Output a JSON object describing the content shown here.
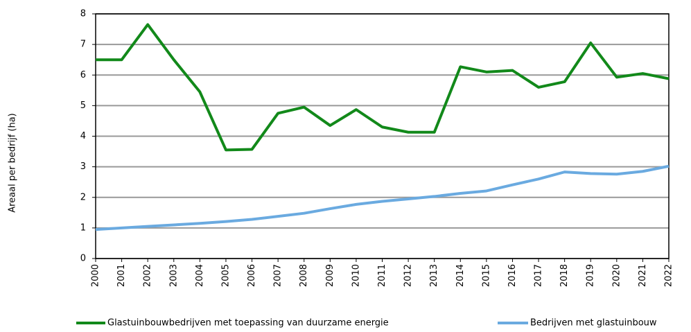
{
  "chart_data": {
    "type": "line",
    "y_label": "Areaal per bedrijf (ha)",
    "categories": [
      "2000",
      "2001",
      "2002",
      "2003",
      "2004",
      "2005",
      "2006",
      "2007",
      "2008",
      "2009",
      "2010",
      "2011",
      "2012",
      "2013",
      "2014",
      "2015",
      "2016",
      "2017",
      "2018",
      "2019",
      "2020",
      "2021",
      "2022"
    ],
    "series": [
      {
        "name": "Glastuinbouwbedrijven met toepassing van duurzame energie",
        "color": "#12891a",
        "values": [
          6.5,
          6.5,
          7.65,
          6.5,
          5.45,
          3.55,
          3.57,
          4.75,
          4.95,
          4.35,
          4.87,
          4.3,
          4.13,
          4.13,
          6.27,
          6.1,
          6.15,
          5.6,
          5.78,
          7.05,
          5.93,
          6.05,
          5.88
        ]
      },
      {
        "name": "Bedrijven met glastuinbouw",
        "color": "#6aaae0",
        "values": [
          0.95,
          1.0,
          1.05,
          1.1,
          1.15,
          1.21,
          1.28,
          1.38,
          1.48,
          1.63,
          1.77,
          1.87,
          1.95,
          2.03,
          2.13,
          2.21,
          2.41,
          2.6,
          2.83,
          2.78,
          2.76,
          2.85,
          3.02
        ]
      }
    ],
    "ylim": [
      0,
      8
    ],
    "yticks": [
      0,
      1,
      2,
      3,
      4,
      5,
      6,
      7,
      8
    ],
    "grid": true
  }
}
